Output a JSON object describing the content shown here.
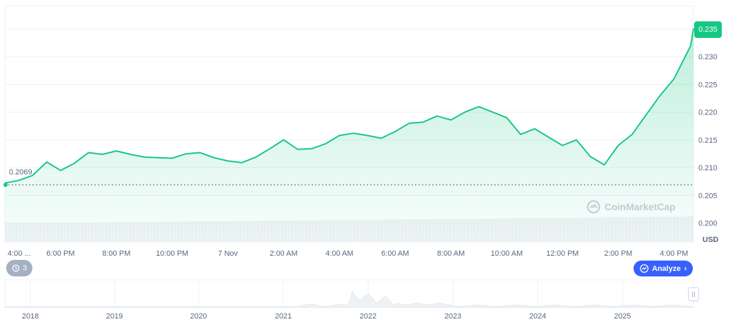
{
  "chart_data": {
    "type": "area",
    "ylabel": "USD",
    "ylim": [
      0.1966,
      0.2391
    ],
    "y_ticks": [
      "0.200",
      "0.205",
      "0.210",
      "0.215",
      "0.220",
      "0.225",
      "0.230",
      "0.235"
    ],
    "x_ticks": [
      "4:00 ...",
      "6:00 PM",
      "8:00 PM",
      "10:00 PM",
      "7 Nov",
      "2:00 AM",
      "4:00 AM",
      "6:00 AM",
      "8:00 AM",
      "10:00 AM",
      "12:00 PM",
      "2:00 PM",
      "4:00 PM"
    ],
    "x_tick_hours": [
      0,
      2,
      4,
      6,
      8,
      10,
      12,
      14,
      16,
      18,
      20,
      22,
      24
    ],
    "x_range_hours": [
      0,
      24.7
    ],
    "price_series": {
      "x_hours": [
        0,
        0.5,
        1.0,
        1.5,
        2.0,
        2.5,
        3.0,
        3.5,
        4.0,
        4.5,
        5.0,
        5.5,
        6.0,
        6.5,
        7.0,
        7.5,
        8.0,
        8.5,
        9.0,
        9.5,
        10.0,
        10.5,
        11.0,
        11.5,
        12.0,
        12.5,
        13.0,
        13.5,
        14.0,
        14.5,
        15.0,
        15.5,
        16.0,
        16.5,
        17.0,
        17.5,
        18.0,
        18.5,
        19.0,
        19.5,
        20.0,
        20.5,
        21.0,
        21.5,
        22.0,
        22.5,
        23.0,
        23.5,
        24.0,
        24.3,
        24.6,
        24.7
      ],
      "values": [
        0.2072,
        0.2077,
        0.2086,
        0.211,
        0.2095,
        0.2108,
        0.2127,
        0.2124,
        0.213,
        0.2124,
        0.2119,
        0.2118,
        0.2117,
        0.2125,
        0.2127,
        0.2118,
        0.2112,
        0.2109,
        0.2119,
        0.2134,
        0.215,
        0.2133,
        0.2134,
        0.2143,
        0.2158,
        0.2162,
        0.2158,
        0.2153,
        0.2165,
        0.218,
        0.2182,
        0.2193,
        0.2186,
        0.22,
        0.221,
        0.22,
        0.219,
        0.216,
        0.217,
        0.2155,
        0.214,
        0.215,
        0.212,
        0.2105,
        0.214,
        0.216,
        0.2195,
        0.223,
        0.226,
        0.229,
        0.232,
        0.2351
      ]
    },
    "open_price": "0.2069",
    "current_price": "0.235",
    "navigator_years": [
      "2018",
      "2019",
      "2020",
      "2021",
      "2022",
      "2023",
      "2024",
      "2025"
    ],
    "colors": {
      "line": "#16c784",
      "area_top": "#16c784",
      "volume": "#eef1f5",
      "grid": "#eef0f4",
      "axis_text": "#58667e",
      "navigator_fill": "#eff2f5",
      "accent": "#3861fb"
    },
    "grid": true
  },
  "ui": {
    "history_count": "3",
    "analyze_label": "Analyze",
    "watermark": "CoinMarketCap",
    "currency": "USD"
  }
}
